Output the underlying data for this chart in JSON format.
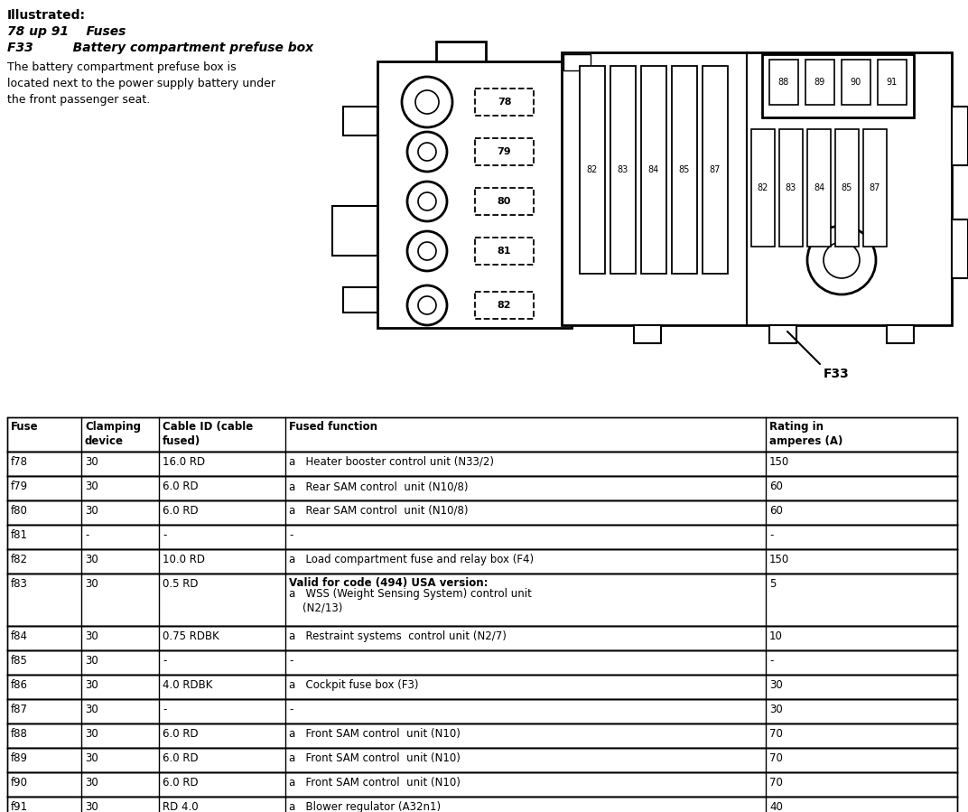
{
  "title_line1": "Illustrated:",
  "title_line2": "78 up 91    Fuses",
  "title_line3": "F33         Battery compartment prefuse box",
  "description": "The battery compartment prefuse box is\nlocated next to the power supply battery under\nthe front passenger seat.",
  "diagram_label": "F33",
  "table_headers": [
    "Fuse",
    "Clamping\ndevice",
    "Cable ID (cable\nfused)",
    "Fused function",
    "Rating in\namperes (A)"
  ],
  "table_rows": [
    [
      "f78",
      "30",
      "16.0 RD",
      "a   Heater booster control unit (N33/2)",
      "150"
    ],
    [
      "f79",
      "30",
      "6.0 RD",
      "a   Rear SAM control  unit (N10/8)",
      "60"
    ],
    [
      "f80",
      "30",
      "6.0 RD",
      "a   Rear SAM control  unit (N10/8)",
      "60"
    ],
    [
      "f81",
      "-",
      "-",
      "-",
      "-"
    ],
    [
      "f82",
      "30",
      "10.0 RD",
      "a   Load compartment fuse and relay box (F4)",
      "150"
    ],
    [
      "f83",
      "30",
      "0.5 RD",
      "Valid for code (494) USA version:\na   WSS (Weight Sensing System) control unit\n    (N2/13)",
      "5"
    ],
    [
      "f84",
      "30",
      "0.75 RDBK",
      "a   Restraint systems  control unit (N2/7)",
      "10"
    ],
    [
      "f85",
      "30",
      "-",
      "-",
      "-"
    ],
    [
      "f86",
      "30",
      "4.0 RDBK",
      "a   Cockpit fuse box (F3)",
      "30"
    ],
    [
      "f87",
      "30",
      "-",
      "-",
      "30"
    ],
    [
      "f88",
      "30",
      "6.0 RD",
      "a   Front SAM control  unit (N10)",
      "70"
    ],
    [
      "f89",
      "30",
      "6.0 RD",
      "a   Front SAM control  unit (N10)",
      "70"
    ],
    [
      "f90",
      "30",
      "6.0 RD",
      "a   Front SAM control  unit (N10)",
      "70"
    ],
    [
      "f91",
      "30",
      "RD 4.0",
      "a   Blower regulator (A32n1)",
      "40"
    ]
  ],
  "bg_color": "#ffffff",
  "text_color": "#000000"
}
